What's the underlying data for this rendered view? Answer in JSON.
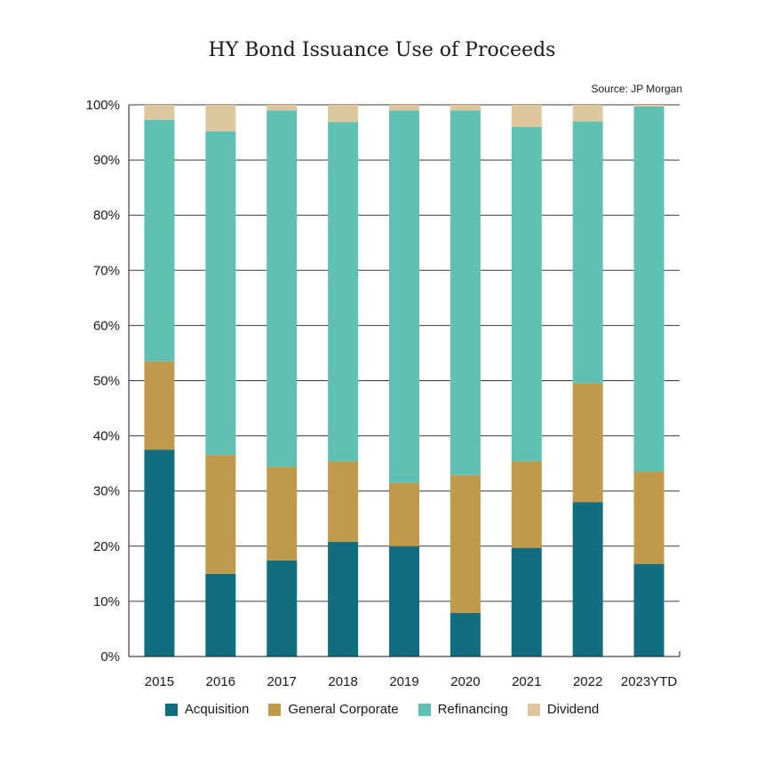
{
  "chart_data": {
    "type": "bar",
    "stacked": true,
    "title": "HY Bond Issuance Use of Proceeds",
    "source": "Source: JP Morgan",
    "xlabel": "",
    "ylabel": "",
    "ylim": [
      0,
      100
    ],
    "yticks": [
      "0%",
      "10%",
      "20%",
      "30%",
      "40%",
      "50%",
      "60%",
      "70%",
      "80%",
      "90%",
      "100%"
    ],
    "grid": true,
    "legend_position": "bottom",
    "categories": [
      "2015",
      "2016",
      "2017",
      "2018",
      "2019",
      "2020",
      "2021",
      "2022",
      "2023YTD"
    ],
    "series": [
      {
        "name": "Acquisition",
        "color": "#116e7e",
        "values": [
          37.5,
          15,
          17.4,
          20.8,
          20,
          7.9,
          19.7,
          28,
          16.8
        ]
      },
      {
        "name": "General Corporate",
        "color": "#be9a4a",
        "values": [
          16,
          21.5,
          17,
          14.6,
          11.5,
          25,
          15.7,
          21.5,
          16.7
        ]
      },
      {
        "name": "Refinancing",
        "color": "#60c0b4",
        "values": [
          43.8,
          58.7,
          64.6,
          61.5,
          67.5,
          66.1,
          60.6,
          47.5,
          66.2
        ]
      },
      {
        "name": "Dividend",
        "color": "#dcc79f",
        "values": [
          2.7,
          4.8,
          1,
          3.1,
          1,
          1,
          4,
          3,
          0.3
        ]
      }
    ]
  }
}
